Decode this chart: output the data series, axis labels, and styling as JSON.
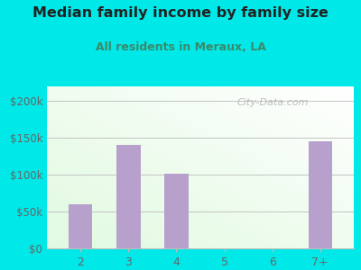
{
  "title": "Median family income by family size",
  "subtitle": "All residents in Meraux, LA",
  "categories": [
    "2",
    "3",
    "4",
    "5",
    "6",
    "7+"
  ],
  "values": [
    60000,
    140000,
    102000,
    0,
    0,
    145000
  ],
  "bar_color": "#b8a0cc",
  "bg_outer": "#00e8e8",
  "title_color": "#222222",
  "subtitle_color": "#3a8a6a",
  "tick_color": "#666666",
  "ylabel_values": [
    0,
    50000,
    100000,
    150000,
    200000
  ],
  "ylabel_labels": [
    "$0",
    "$50k",
    "$100k",
    "$150k",
    "$200k"
  ],
  "ylim": [
    0,
    220000
  ],
  "watermark": "City-Data.com",
  "grid_color": "#bbbbbb"
}
